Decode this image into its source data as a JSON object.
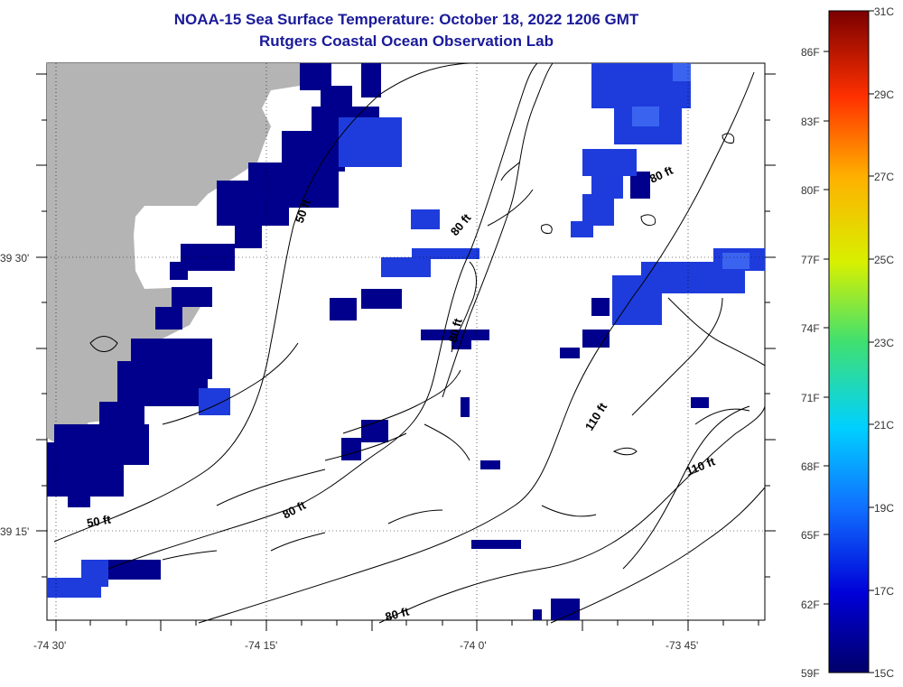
{
  "title": {
    "line1": "NOAA-15 Sea Surface Temperature:  October 18, 2022 1206 GMT",
    "line2": "Rutgers Coastal Ocean Observation Lab"
  },
  "axes": {
    "x_ticks": [
      "-74 30'",
      "-74 15'",
      "-74 0'",
      "-73 45'"
    ],
    "y_ticks": [
      "39 30'",
      "39 15'"
    ]
  },
  "contours": {
    "labels": [
      "50 ft",
      "80 ft",
      "80 ft",
      "80 ft",
      "110 ft",
      "110 ft",
      "80 ft",
      "50 ft",
      "80 ft"
    ]
  },
  "colorbar": {
    "fahrenheit": [
      "86F",
      "83F",
      "80F",
      "77F",
      "74F",
      "71F",
      "68F",
      "65F",
      "62F",
      "59F"
    ],
    "celsius": [
      "31C",
      "29C",
      "27C",
      "25C",
      "23C",
      "21C",
      "19C",
      "17C",
      "15C"
    ],
    "min_c": 15,
    "max_c": 31
  },
  "colors": {
    "land": "#b4b4b4",
    "title": "#1a1a9a",
    "sst_dark": "#00008c",
    "sst_blue": "#1e3cdc"
  }
}
